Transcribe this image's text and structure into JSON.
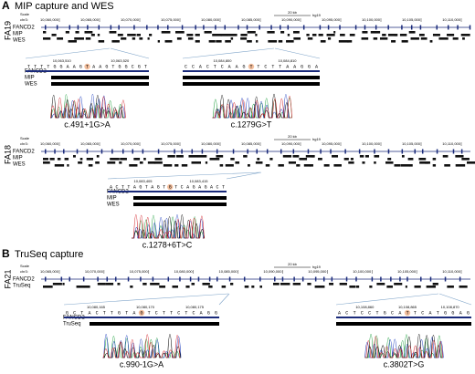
{
  "panels": [
    {
      "letter": "A",
      "title": "MIP capture and WES",
      "samples": [
        {
          "id": "FA19",
          "scale": "20 kb",
          "build": "hg19",
          "chrom": "chr3:",
          "ruler": [
            "10,060,000",
            "10,065,000",
            "10,070,000",
            "10,075,000",
            "10,080,000",
            "10,085,000",
            "10,090,000",
            "10,095,000",
            "10,100,000",
            "10,105,000",
            "10,110,000"
          ],
          "tracks": [
            "FANCD2",
            "MIP",
            "WES"
          ],
          "zooms": [
            {
              "coords": [
                "10,063,510",
                "10,063,520"
              ],
              "sequence": "TTTTGGAAGTAAGTGGCGT",
              "track_labels": [
                "FANCD2",
                "MIP",
                "WES"
              ],
              "label": "c.491+1G>A"
            },
            {
              "coords": [
                "10,084,800",
                "10,084,810"
              ],
              "sequence": "CCACTCAAGTTCTTAAGGA",
              "label": "c.1279G>T"
            }
          ]
        },
        {
          "id": "FA18",
          "scale": "20 kb",
          "build": "hg19",
          "chrom": "chr3:",
          "ruler": [
            "10,060,000",
            "10,065,000",
            "10,070,000",
            "10,075,000",
            "10,080,000",
            "10,085,000",
            "10,090,000",
            "10,095,000",
            "10,100,000",
            "10,105,000",
            "10,110,000"
          ],
          "tracks": [
            "FANCD2",
            "MIP",
            "WES"
          ],
          "zooms": [
            {
              "coords": [
                "10,083,405",
                "10,083,415"
              ],
              "sequence": "ACTTAGTAGTGTCAGAGACT",
              "track_labels": [
                "FANCD2",
                "MIP",
                "WES"
              ],
              "label": "c.1278+6T>C"
            }
          ]
        }
      ]
    },
    {
      "letter": "B",
      "title": "TruSeq capture",
      "samples": [
        {
          "id": "FA21",
          "scale": "20 kb",
          "build": "hg19",
          "chrom": "chr3:",
          "ruler": [
            "10,065,000",
            "10,070,000",
            "10,075,000",
            "10,080,000",
            "10,085,000",
            "10,090,000",
            "10,095,000",
            "10,100,000",
            "10,105,000",
            "10,110,000"
          ],
          "tracks": [
            "FANCD2",
            "TruSeq"
          ],
          "zooms": [
            {
              "coords": [
                "10,080,165",
                "10,080,170",
                "10,080,175"
              ],
              "sequence": "GCTACTTGTAGTCTTCTCAGG",
              "track_labels": [
                "FANCD2",
                "TruSeq"
              ],
              "label": "c.990-1G>A"
            },
            {
              "coords": [
                "10,108,860",
                "10,108,865",
                "10,108,870"
              ],
              "sequence": "ACTCCTGCATTCATGGAG",
              "label": "c.3802T>G"
            }
          ]
        }
      ]
    }
  ]
}
